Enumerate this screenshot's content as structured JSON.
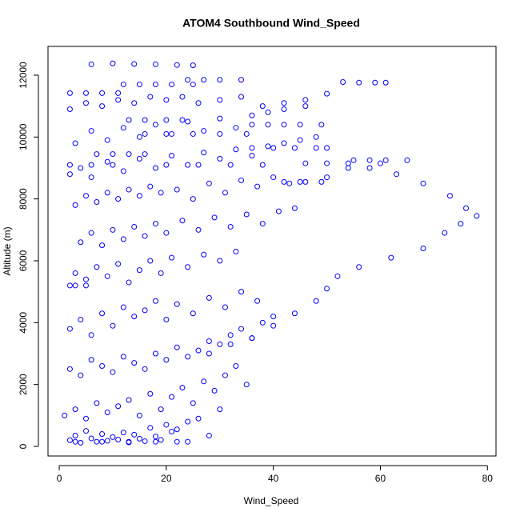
{
  "chart_data": {
    "type": "scatter",
    "title": "ATOM4 Southbound Wind_Speed",
    "x_label": "Wind_Speed",
    "y_label": "Altitude (m)",
    "color": "#0000ff",
    "xlim": [
      -2.1,
      81.6
    ],
    "ylim": [
      -310,
      12930
    ],
    "xticks": [
      0,
      20,
      40,
      60,
      80
    ],
    "yticks": [
      0,
      2000,
      4000,
      6000,
      8000,
      10000,
      12000
    ],
    "x": [
      28,
      32,
      36,
      40,
      44,
      48,
      50,
      52,
      56,
      62,
      68,
      72,
      75,
      78,
      76,
      73,
      68,
      63,
      58,
      54,
      50,
      46,
      43,
      6,
      10,
      14,
      18,
      22,
      25,
      53,
      56,
      59,
      61,
      2,
      5,
      8,
      11,
      12,
      15,
      18,
      21,
      25,
      24,
      27,
      30,
      34,
      36,
      39,
      42,
      45,
      49,
      55,
      58,
      61,
      65,
      46,
      50,
      54,
      60,
      36,
      40,
      44,
      48,
      50,
      42,
      45,
      49,
      13,
      16,
      20,
      23,
      16,
      20,
      25,
      30,
      35,
      2,
      6,
      10,
      20,
      26,
      32,
      38,
      7,
      10,
      13,
      16,
      2,
      3,
      5,
      3,
      8,
      13,
      18,
      22,
      24,
      2,
      3,
      4,
      5,
      6,
      7,
      8,
      9,
      10,
      11,
      12,
      13,
      14,
      15,
      16,
      17,
      18,
      19,
      20,
      21,
      22,
      24,
      26,
      28,
      30,
      1,
      3,
      5,
      7,
      9,
      11,
      13,
      15,
      17,
      19,
      21,
      23,
      25,
      27,
      29,
      31,
      33,
      35,
      2,
      4,
      6,
      8,
      10,
      12,
      14,
      16,
      18,
      20,
      22,
      24,
      26,
      28,
      30,
      32,
      34,
      36,
      38,
      40,
      2,
      4,
      6,
      8,
      10,
      12,
      14,
      16,
      18,
      20,
      22,
      25,
      28,
      31,
      34,
      37,
      3,
      5,
      7,
      9,
      11,
      13,
      15,
      17,
      19,
      21,
      24,
      27,
      30,
      33,
      4,
      6,
      8,
      10,
      12,
      14,
      16,
      18,
      20,
      23,
      26,
      29,
      32,
      35,
      38,
      41,
      44,
      3,
      5,
      7,
      9,
      11,
      13,
      15,
      17,
      19,
      22,
      25,
      28,
      31,
      34,
      37,
      40,
      2,
      4,
      6,
      9,
      12,
      15,
      18,
      21,
      24,
      27,
      30,
      33,
      36,
      39,
      42,
      45,
      48,
      3,
      6,
      9,
      12,
      15,
      18,
      21,
      24,
      27,
      30,
      33,
      36,
      39,
      42,
      46,
      2,
      5,
      8,
      11,
      14,
      17,
      20,
      23,
      26,
      30,
      34,
      38,
      42,
      46,
      50
    ],
    "y": [
      3000,
      3300,
      3500,
      3900,
      4300,
      4700,
      5100,
      5500,
      5800,
      6100,
      6400,
      6900,
      7200,
      7450,
      7700,
      8100,
      8500,
      8800,
      9000,
      9000,
      8700,
      8550,
      8500,
      12350,
      12380,
      12360,
      12350,
      12330,
      12320,
      11780,
      11760,
      11760,
      11760,
      11420,
      11420,
      11420,
      11420,
      11700,
      11700,
      11700,
      11700,
      11700,
      11850,
      11850,
      11850,
      11850,
      10400,
      10400,
      10400,
      10400,
      10400,
      9250,
      9250,
      9250,
      9250,
      9150,
      9150,
      9150,
      9150,
      9650,
      9650,
      9650,
      9650,
      9650,
      8550,
      8550,
      8550,
      10550,
      10550,
      10550,
      10550,
      10100,
      10100,
      10100,
      10100,
      10100,
      9100,
      9100,
      9100,
      9100,
      9100,
      9100,
      9100,
      9450,
      9450,
      9450,
      9450,
      5200,
      5200,
      5200,
      150,
      150,
      150,
      150,
      150,
      150,
      200,
      350,
      120,
      500,
      260,
      150,
      400,
      180,
      300,
      220,
      450,
      130,
      380,
      250,
      170,
      600,
      320,
      210,
      700,
      480,
      550,
      800,
      900,
      350,
      1200,
      1000,
      1200,
      900,
      1400,
      1100,
      1300,
      1500,
      1000,
      1700,
      1200,
      1600,
      1900,
      1400,
      2100,
      1800,
      2300,
      2600,
      2000,
      2500,
      2300,
      2800,
      2600,
      2400,
      2900,
      2700,
      2500,
      3000,
      2800,
      3200,
      2900,
      3100,
      3400,
      3300,
      3600,
      3800,
      3500,
      4000,
      4200,
      3800,
      4100,
      3600,
      4300,
      3900,
      4500,
      4200,
      4400,
      4700,
      4100,
      4600,
      4300,
      4800,
      4500,
      5000,
      4700,
      5600,
      5400,
      5800,
      5500,
      5900,
      5300,
      5700,
      6000,
      5600,
      6100,
      5800,
      6200,
      6000,
      6300,
      6600,
      6900,
      6500,
      7000,
      6700,
      7100,
      6800,
      7200,
      6900,
      7300,
      7000,
      7400,
      7100,
      7500,
      7200,
      7600,
      7700,
      7800,
      8100,
      7900,
      8200,
      8000,
      8300,
      8100,
      8400,
      8200,
      8300,
      8000,
      8500,
      8200,
      8600,
      8400,
      8700,
      8800,
      9000,
      8700,
      9200,
      8900,
      9300,
      9000,
      9400,
      9100,
      9500,
      9300,
      9600,
      9400,
      9700,
      9800,
      9900,
      10000,
      9800,
      10200,
      9900,
      10300,
      10000,
      10400,
      10100,
      10500,
      10200,
      10600,
      10300,
      10700,
      10800,
      10900,
      11000,
      10900,
      11100,
      11000,
      11200,
      11100,
      11300,
      11200,
      11300,
      11100,
      11200,
      11300,
      11000,
      11100,
      11200,
      11400
    ]
  }
}
